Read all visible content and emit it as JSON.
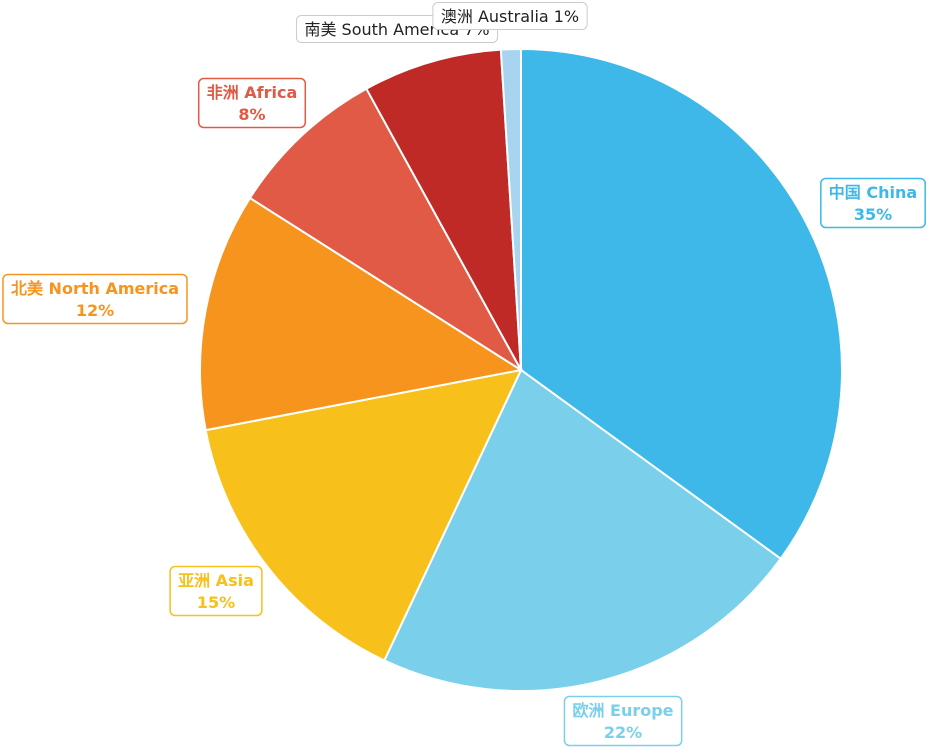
{
  "chart_data": {
    "type": "pie",
    "categories": [
      "中国 China",
      "欧洲 Europe",
      "亚洲 Asia",
      "北美 North America",
      "非洲 Africa",
      "南美 South America",
      "澳洲 Australia"
    ],
    "values": [
      35,
      22,
      15,
      12,
      8,
      7,
      1
    ],
    "value_labels": [
      "35%",
      "22%",
      "15%",
      "12%",
      "8%",
      "7%",
      "1%"
    ],
    "colors": [
      "#3db8e8",
      "#7ad0ea",
      "#f8c01a",
      "#f7941d",
      "#e05a45",
      "#bf2a26",
      "#a8d4f0"
    ]
  }
}
